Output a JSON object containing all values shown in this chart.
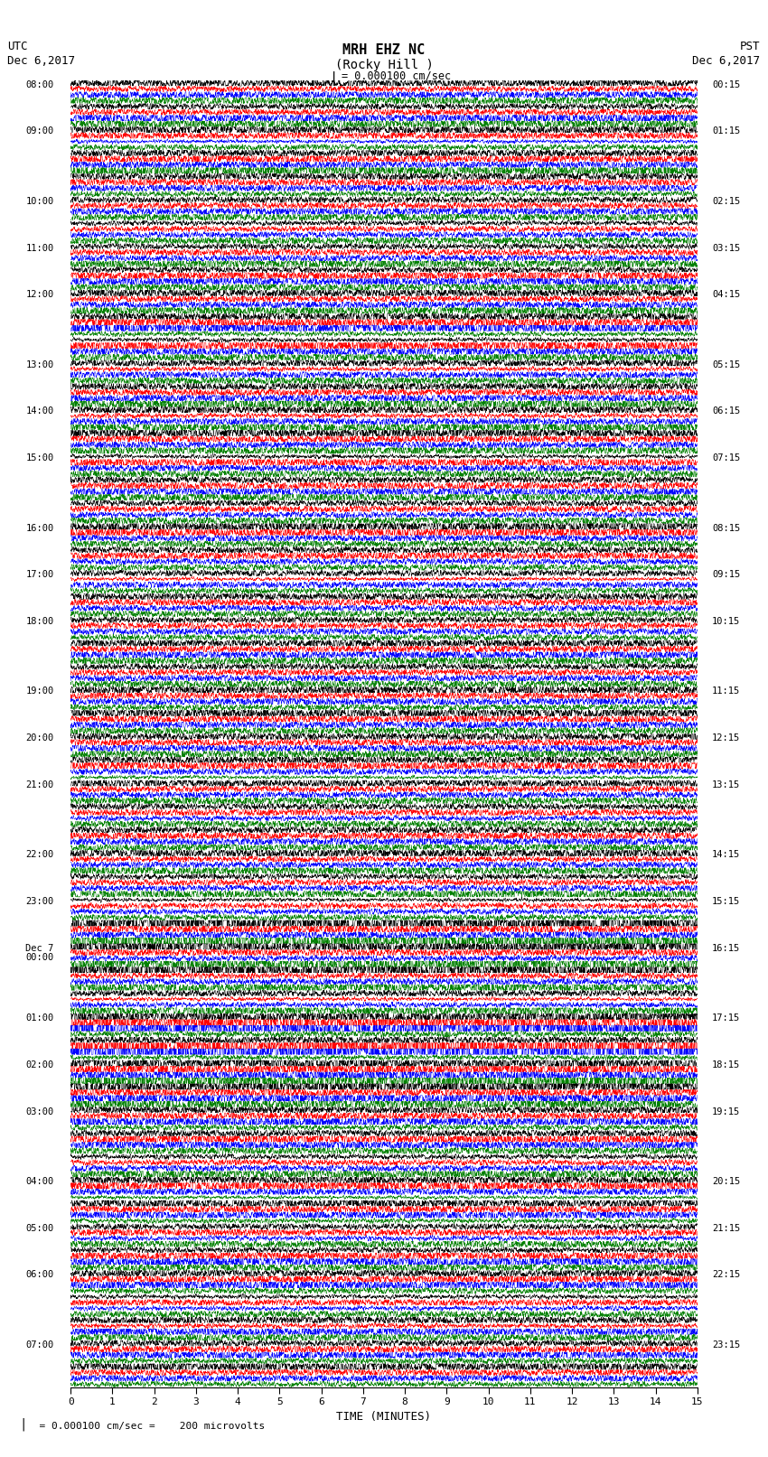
{
  "title_line1": "MRH EHZ NC",
  "title_line2": "(Rocky Hill )",
  "title_line3": "  = 0.000100 cm/sec",
  "left_label_line1": "UTC",
  "left_label_line2": "Dec 6,2017",
  "right_label_line1": "PST",
  "right_label_line2": "Dec 6,2017",
  "bottom_note": "  = 0.000100 cm/sec =    200 microvolts",
  "xlabel": "TIME (MINUTES)",
  "colors": [
    "black",
    "red",
    "blue",
    "green"
  ],
  "num_rows": 56,
  "traces_per_row": 4,
  "bg_color": "#ffffff",
  "fig_width": 8.5,
  "fig_height": 16.13,
  "left_time_labels": [
    "08:00",
    "09:00",
    "10:00",
    "11:00",
    "12:00",
    "13:00",
    "14:00",
    "15:00",
    "16:00",
    "17:00",
    "18:00",
    "19:00",
    "20:00",
    "21:00",
    "22:00",
    "23:00",
    "Dec 7\n00:00",
    "01:00",
    "02:00",
    "03:00",
    "04:00",
    "05:00",
    "06:00",
    "07:00"
  ],
  "right_time_labels": [
    "00:15",
    "01:15",
    "02:15",
    "03:15",
    "04:15",
    "05:15",
    "06:15",
    "07:15",
    "08:15",
    "09:15",
    "10:15",
    "11:15",
    "12:15",
    "13:15",
    "14:15",
    "15:15",
    "16:15",
    "17:15",
    "18:15",
    "19:15",
    "20:15",
    "21:15",
    "22:15",
    "23:15"
  ]
}
